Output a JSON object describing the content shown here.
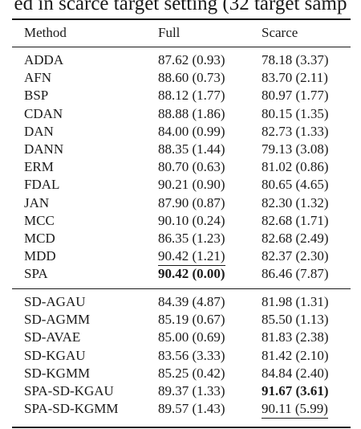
{
  "caption": "ed in scarce target setting (32 target samp",
  "table": {
    "headers": [
      "Method",
      "Full",
      "Scarce"
    ],
    "group1": [
      {
        "method": "ADDA",
        "full": "87.62 (0.93)",
        "scarce": "78.18 (3.37)"
      },
      {
        "method": "AFN",
        "full": "88.60 (0.73)",
        "scarce": "83.70 (2.11)"
      },
      {
        "method": "BSP",
        "full": "88.12 (1.77)",
        "scarce": "80.97 (1.77)"
      },
      {
        "method": "CDAN",
        "full": "88.88 (1.86)",
        "scarce": "80.15 (1.35)"
      },
      {
        "method": "DAN",
        "full": "84.00 (0.99)",
        "scarce": "82.73 (1.33)"
      },
      {
        "method": "DANN",
        "full": "88.35 (1.44)",
        "scarce": "79.13 (3.08)"
      },
      {
        "method": "ERM",
        "full": "80.70 (0.63)",
        "scarce": "81.02 (0.86)"
      },
      {
        "method": "FDAL",
        "full": "90.21 (0.90)",
        "scarce": "80.65 (4.65)"
      },
      {
        "method": "JAN",
        "full": "87.90 (0.87)",
        "scarce": "82.30 (1.32)"
      },
      {
        "method": "MCC",
        "full": "90.10 (0.24)",
        "scarce": "82.68 (1.71)"
      },
      {
        "method": "MCD",
        "full": "86.35 (1.23)",
        "scarce": "82.68 (2.49)"
      },
      {
        "method": "MDD",
        "full": "90.42 (1.21)",
        "scarce": "82.37 (2.30)"
      },
      {
        "method": "SPA",
        "full": "90.42 (0.00)",
        "scarce": "86.46 (7.87)"
      }
    ],
    "group2": [
      {
        "method": "SD-AGAU",
        "full": "84.39 (4.87)",
        "scarce": "81.98 (1.31)"
      },
      {
        "method": "SD-AGMM",
        "full": "85.19 (0.67)",
        "scarce": "85.50 (1.13)"
      },
      {
        "method": "SD-AVAE",
        "full": "85.00 (0.69)",
        "scarce": "81.83 (2.38)"
      },
      {
        "method": "SD-KGAU",
        "full": "83.56 (3.33)",
        "scarce": "81.42 (2.10)"
      },
      {
        "method": "SD-KGMM",
        "full": "85.25 (0.42)",
        "scarce": "84.84 (2.40)"
      },
      {
        "method": "SPA-SD-KGAU",
        "full": "89.37 (1.33)",
        "scarce": "91.67 (3.61)"
      },
      {
        "method": "SPA-SD-KGMM",
        "full": "89.57 (1.43)",
        "scarce": "90.11 (5.99)"
      }
    ]
  }
}
